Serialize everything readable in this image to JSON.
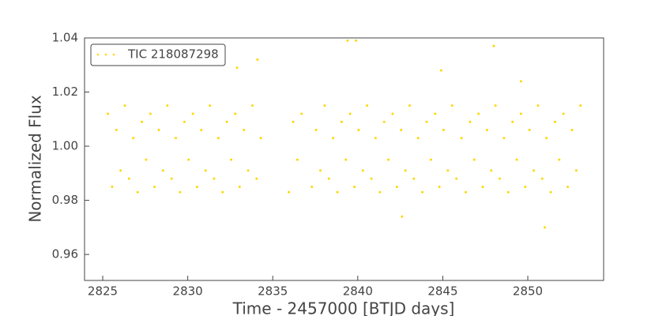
{
  "chart_data": {
    "type": "scatter",
    "xlabel": "Time - 2457000 [BTJD days]",
    "ylabel": "Normalized Flux",
    "legend": "upper left",
    "xlim": [
      2823.93,
      2854.46
    ],
    "ylim": [
      0.9504,
      1.04
    ],
    "xticks": [
      2825,
      2830,
      2835,
      2840,
      2845,
      2850
    ],
    "yticks": [
      0.96,
      0.98,
      {
        "value": 1.0,
        "label": "1.00"
      },
      1.02,
      1.04
    ],
    "series": [
      {
        "name": "TIC 218087298",
        "color": "#ffd700",
        "x": [
          2825.3,
          2825.55,
          2825.8,
          2826.05,
          2826.3,
          2826.55,
          2826.8,
          2827.05,
          2827.3,
          2827.55,
          2827.8,
          2828.05,
          2828.3,
          2828.55,
          2828.8,
          2829.05,
          2829.3,
          2829.55,
          2829.8,
          2830.05,
          2830.3,
          2830.55,
          2830.8,
          2831.05,
          2831.3,
          2831.55,
          2831.8,
          2832.05,
          2832.3,
          2832.55,
          2832.8,
          2833.05,
          2833.3,
          2833.55,
          2833.8,
          2834.05,
          2834.3,
          2835.95,
          2836.2,
          2836.45,
          2836.7,
          2837.3,
          2837.55,
          2837.8,
          2838.05,
          2838.3,
          2838.55,
          2838.8,
          2839.05,
          2839.3,
          2839.55,
          2839.8,
          2840.05,
          2840.3,
          2840.55,
          2840.8,
          2841.05,
          2841.3,
          2841.55,
          2841.8,
          2842.05,
          2842.3,
          2842.55,
          2842.8,
          2843.05,
          2843.3,
          2843.55,
          2843.8,
          2844.05,
          2844.3,
          2844.55,
          2844.8,
          2845.05,
          2845.3,
          2845.55,
          2845.8,
          2846.1,
          2846.35,
          2846.6,
          2846.85,
          2847.1,
          2847.35,
          2847.6,
          2847.85,
          2848.1,
          2848.35,
          2848.6,
          2848.85,
          2849.1,
          2849.35,
          2849.6,
          2849.85,
          2850.1,
          2850.35,
          2850.6,
          2850.85,
          2851.1,
          2851.35,
          2851.6,
          2851.85,
          2852.1,
          2852.35,
          2852.6,
          2852.85,
          2853.1,
          2839.4,
          2839.9,
          2834.1,
          2851.0,
          2848.0,
          2832.9,
          2842.6,
          2844.9,
          2849.6
        ],
        "y": [
          1.012,
          0.985,
          1.006,
          0.991,
          1.015,
          0.988,
          1.003,
          0.983,
          1.009,
          0.995,
          1.012,
          0.985,
          1.006,
          0.991,
          1.015,
          0.988,
          1.003,
          0.983,
          1.009,
          0.995,
          1.012,
          0.985,
          1.006,
          0.991,
          1.015,
          0.988,
          1.003,
          0.983,
          1.009,
          0.995,
          1.012,
          0.985,
          1.006,
          0.991,
          1.015,
          0.988,
          1.003,
          0.983,
          1.009,
          0.995,
          1.012,
          0.985,
          1.006,
          0.991,
          1.015,
          0.988,
          1.003,
          0.983,
          1.009,
          0.995,
          1.012,
          0.985,
          1.006,
          0.991,
          1.015,
          0.988,
          1.003,
          0.983,
          1.009,
          0.995,
          1.012,
          0.985,
          1.006,
          0.991,
          1.015,
          0.988,
          1.003,
          0.983,
          1.009,
          0.995,
          1.012,
          0.985,
          1.006,
          0.991,
          1.015,
          0.988,
          1.003,
          0.983,
          1.009,
          0.995,
          1.012,
          0.985,
          1.006,
          0.991,
          1.015,
          0.988,
          1.003,
          0.983,
          1.009,
          0.995,
          1.012,
          0.985,
          1.006,
          0.991,
          1.015,
          0.988,
          1.003,
          0.983,
          1.009,
          0.995,
          1.012,
          0.985,
          1.006,
          0.991,
          1.015,
          1.039,
          1.039,
          1.032,
          0.97,
          1.037,
          1.029,
          0.974,
          1.028,
          1.024
        ]
      }
    ]
  }
}
